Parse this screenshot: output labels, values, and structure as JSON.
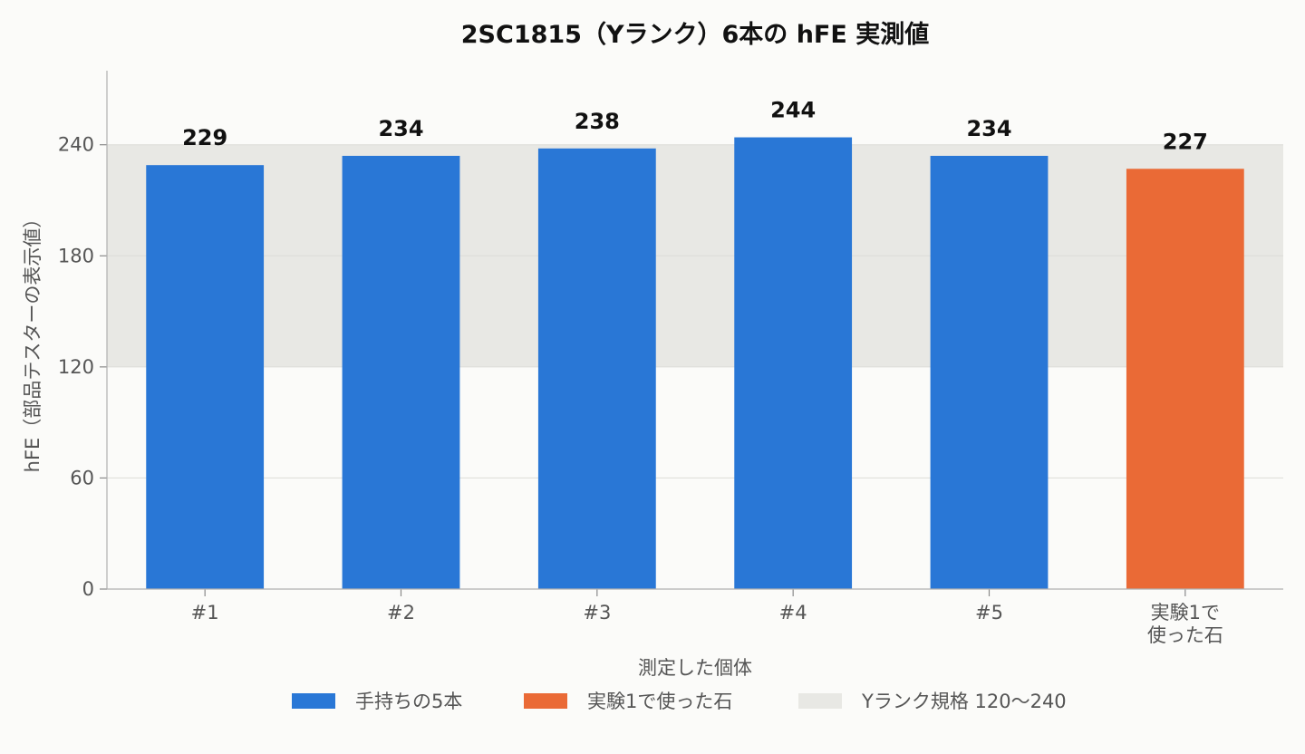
{
  "chart_data": {
    "type": "bar",
    "title": "2SC1815（Yランク）6本の hFE 実測値",
    "xlabel": "測定した個体",
    "ylabel": "hFE（部品テスターの表示値）",
    "categories": [
      [
        "#1"
      ],
      [
        "#2"
      ],
      [
        "#3"
      ],
      [
        "#4"
      ],
      [
        "#5"
      ],
      [
        "実験1で",
        "使った石"
      ]
    ],
    "values": [
      229,
      234,
      238,
      244,
      234,
      227
    ],
    "data_labels": [
      "229",
      "234",
      "238",
      "244",
      "234",
      "227"
    ],
    "bar_series": [
      0,
      0,
      0,
      0,
      0,
      1
    ],
    "series": [
      {
        "name": "手持ちの5本",
        "color": "#2977d6"
      },
      {
        "name": "実験1で使った石",
        "color": "#ea6a36"
      }
    ],
    "band": {
      "name": "Yランク規格 120〜240",
      "from": 120,
      "to": 240,
      "color": "#e8e8e4"
    },
    "ylim": [
      0,
      280
    ],
    "yticks": [
      "0",
      "60",
      "120",
      "180",
      "240"
    ],
    "grid": true,
    "legend_position": "bottom"
  }
}
